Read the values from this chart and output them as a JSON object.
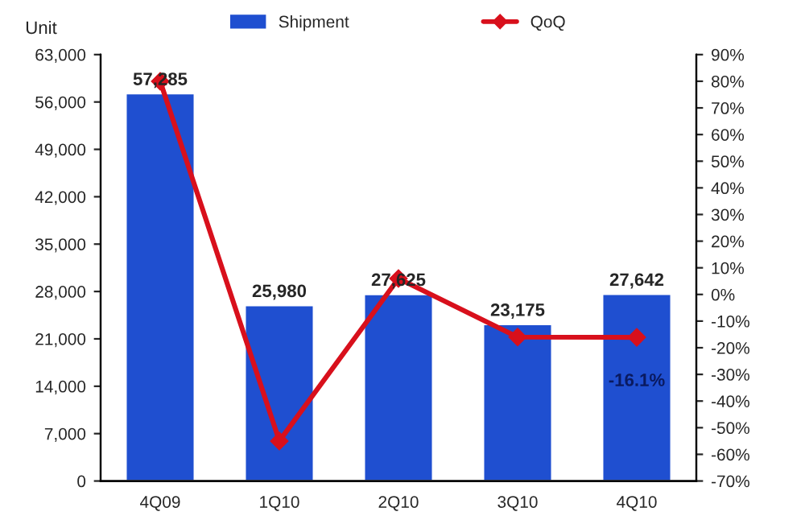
{
  "chart_data": {
    "type": "bar",
    "ylabel": "Unit",
    "categories": [
      "4Q09",
      "1Q10",
      "2Q10",
      "3Q10",
      "4Q10"
    ],
    "series": [
      {
        "name": "Shipment",
        "color": "#1f4fd0",
        "values": [
          57285,
          25980,
          27625,
          23175,
          27642
        ],
        "value_labels": [
          "57,285",
          "25,980",
          "27,625",
          "23,175",
          "27,642"
        ]
      },
      {
        "name": "QoQ",
        "type": "line",
        "axis": "y2",
        "color": "#d8101c",
        "marker": "diamond",
        "line_style": "solid",
        "values": [
          80,
          -55,
          6,
          -16,
          -16.1
        ],
        "value_labels": [
          null,
          null,
          null,
          null,
          "-16.1%"
        ]
      }
    ],
    "ylim": [
      0,
      63000
    ],
    "yticks": [
      {
        "value": 0,
        "label": "0"
      },
      {
        "value": 7000,
        "label": "7,000"
      },
      {
        "value": 14000,
        "label": "14,000"
      },
      {
        "value": 21000,
        "label": "21,000"
      },
      {
        "value": 28000,
        "label": "28,000"
      },
      {
        "value": 35000,
        "label": "35,000"
      },
      {
        "value": 42000,
        "label": "42,000"
      },
      {
        "value": 49000,
        "label": "49,000"
      },
      {
        "value": 56000,
        "label": "56,000"
      },
      {
        "value": 63000,
        "label": "63,000"
      }
    ],
    "y2lim": [
      -70,
      90
    ],
    "y2ticks": [
      {
        "value": -70,
        "label": "-70%"
      },
      {
        "value": -60,
        "label": "-60%"
      },
      {
        "value": -50,
        "label": "-50%"
      },
      {
        "value": -40,
        "label": "-40%"
      },
      {
        "value": -30,
        "label": "-30%"
      },
      {
        "value": -20,
        "label": "-20%"
      },
      {
        "value": -10,
        "label": "-10%"
      },
      {
        "value": 0,
        "label": "0%"
      },
      {
        "value": 10,
        "label": "10%"
      },
      {
        "value": 20,
        "label": "20%"
      },
      {
        "value": 30,
        "label": "30%"
      },
      {
        "value": 40,
        "label": "40%"
      },
      {
        "value": 50,
        "label": "50%"
      },
      {
        "value": 60,
        "label": "60%"
      },
      {
        "value": 70,
        "label": "70%"
      },
      {
        "value": 80,
        "label": "80%"
      },
      {
        "value": 90,
        "label": "90%"
      }
    ],
    "grid": false,
    "legend": "top"
  }
}
